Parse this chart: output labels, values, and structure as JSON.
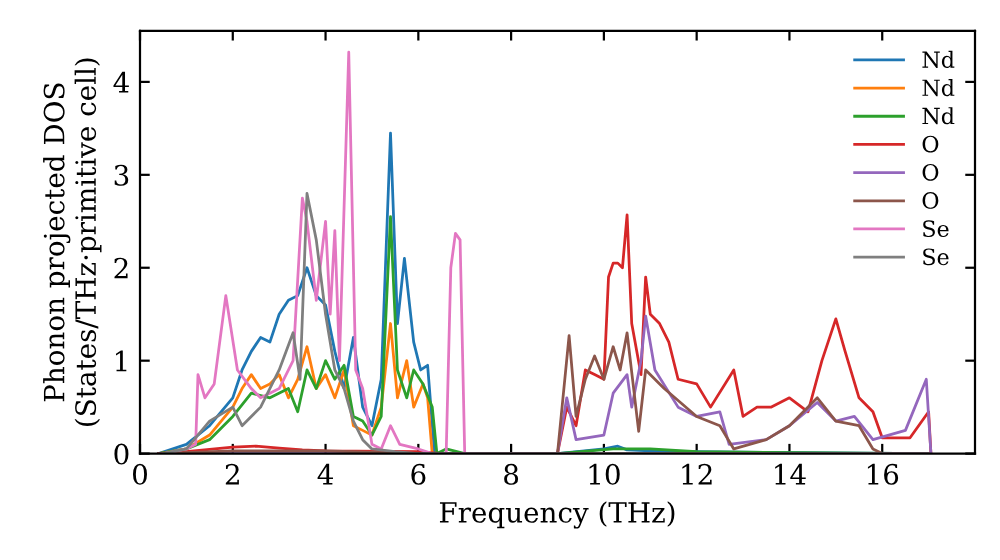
{
  "chart_data": {
    "type": "line",
    "xlabel": "Frequency (THz)",
    "ylabel": "Phonon projected DOS\n(States/THz·primitive cell)",
    "xlim": [
      0,
      18
    ],
    "ylim": [
      0,
      4.55
    ],
    "xticks": [
      0,
      2,
      4,
      6,
      8,
      10,
      12,
      14,
      16
    ],
    "yticks": [
      0,
      1,
      2,
      3,
      4
    ],
    "grid": false,
    "legend": "top right",
    "marker": "none",
    "line_style": "solid",
    "series": [
      {
        "name": "Nd",
        "color": "#1f77b4",
        "x": [
          0.4,
          1.0,
          1.5,
          2.0,
          2.2,
          2.4,
          2.6,
          2.8,
          3.0,
          3.2,
          3.4,
          3.6,
          3.8,
          4.0,
          4.2,
          4.4,
          4.6,
          4.8,
          5.0,
          5.2,
          5.4,
          5.55,
          5.7,
          5.9,
          6.05,
          6.2,
          6.35,
          6.5,
          9.0,
          10.0,
          10.3,
          10.5,
          11.0,
          12.0,
          17.0
        ],
        "values": [
          0,
          0.1,
          0.3,
          0.6,
          0.9,
          1.1,
          1.25,
          1.2,
          1.5,
          1.65,
          1.7,
          2.0,
          1.7,
          1.6,
          1.1,
          0.7,
          1.25,
          0.5,
          0.3,
          0.8,
          3.45,
          1.4,
          2.1,
          1.2,
          0.9,
          0.95,
          0,
          0,
          0,
          0.05,
          0.08,
          0.04,
          0.03,
          0.02,
          0
        ]
      },
      {
        "name": "Nd",
        "color": "#ff7f0e",
        "x": [
          0.4,
          1.0,
          1.5,
          2.0,
          2.2,
          2.4,
          2.6,
          2.8,
          3.0,
          3.2,
          3.4,
          3.6,
          3.8,
          4.0,
          4.2,
          4.4,
          4.6,
          4.8,
          5.0,
          5.2,
          5.4,
          5.55,
          5.75,
          5.9,
          6.1,
          6.2,
          6.3,
          17.0
        ],
        "values": [
          0,
          0.05,
          0.2,
          0.5,
          0.7,
          0.85,
          0.7,
          0.75,
          0.85,
          0.6,
          0.8,
          1.15,
          0.7,
          0.85,
          0.6,
          0.9,
          0.3,
          0.25,
          0.2,
          0.5,
          1.4,
          0.6,
          1.0,
          0.5,
          0.75,
          0.6,
          0,
          0
        ]
      },
      {
        "name": "Nd",
        "color": "#2ca02c",
        "x": [
          0.4,
          1.0,
          1.5,
          2.0,
          2.4,
          2.8,
          3.2,
          3.4,
          3.6,
          3.8,
          4.0,
          4.2,
          4.4,
          4.6,
          4.8,
          5.0,
          5.2,
          5.4,
          5.55,
          5.75,
          5.9,
          6.1,
          6.3,
          6.4,
          6.6,
          7.0,
          9.0,
          10.2,
          11.0,
          12.0,
          17.0
        ],
        "values": [
          0,
          0.05,
          0.15,
          0.4,
          0.65,
          0.6,
          0.7,
          0.45,
          0.9,
          0.7,
          1.0,
          0.8,
          0.95,
          0.4,
          0.35,
          0.2,
          0.4,
          2.55,
          0.9,
          0.6,
          0.9,
          0.75,
          0.5,
          0,
          0.05,
          0,
          0,
          0.05,
          0.05,
          0.02,
          0
        ]
      },
      {
        "name": "O",
        "color": "#d62728",
        "x": [
          0.4,
          1.0,
          2.0,
          2.5,
          3.0,
          3.5,
          4.0,
          6.0,
          6.5,
          9.0,
          9.2,
          9.4,
          9.6,
          9.8,
          10.0,
          10.1,
          10.2,
          10.3,
          10.4,
          10.5,
          10.6,
          10.8,
          10.9,
          11.0,
          11.2,
          11.4,
          11.6,
          12.0,
          12.3,
          12.8,
          13.0,
          13.3,
          13.6,
          14.0,
          14.4,
          14.7,
          15.0,
          15.2,
          15.5,
          15.8,
          16.0,
          16.6,
          17.0,
          17.05
        ],
        "values": [
          0,
          0.02,
          0.07,
          0.08,
          0.06,
          0.04,
          0.03,
          0.02,
          0,
          0,
          0.5,
          0.3,
          0.9,
          0.85,
          0.8,
          1.9,
          2.05,
          2.05,
          2.0,
          2.57,
          1.4,
          0.85,
          1.9,
          1.5,
          1.4,
          1.2,
          0.8,
          0.75,
          0.5,
          0.9,
          0.4,
          0.5,
          0.5,
          0.6,
          0.45,
          1.0,
          1.45,
          1.1,
          0.6,
          0.45,
          0.17,
          0.17,
          0.45,
          0
        ]
      },
      {
        "name": "O",
        "color": "#9467bd",
        "x": [
          0.4,
          9.0,
          9.2,
          9.4,
          10.0,
          10.2,
          10.5,
          10.6,
          10.8,
          10.9,
          11.1,
          11.6,
          12.0,
          12.5,
          12.7,
          13.5,
          14.0,
          14.6,
          15.0,
          15.4,
          15.8,
          16.5,
          16.95,
          17.05
        ],
        "values": [
          0,
          0,
          0.6,
          0.15,
          0.2,
          0.65,
          0.85,
          0.5,
          1.0,
          1.48,
          0.9,
          0.5,
          0.4,
          0.45,
          0.1,
          0.15,
          0.3,
          0.55,
          0.35,
          0.4,
          0.15,
          0.25,
          0.8,
          0
        ]
      },
      {
        "name": "O",
        "color": "#8c564b",
        "x": [
          0.4,
          2.0,
          4.0,
          6.0,
          9.0,
          9.25,
          9.4,
          9.6,
          9.8,
          10.0,
          10.2,
          10.35,
          10.5,
          10.75,
          10.9,
          11.3,
          12.0,
          12.5,
          12.8,
          13.5,
          14.0,
          14.6,
          15.0,
          15.5,
          15.8,
          16.0,
          17.0
        ],
        "values": [
          0,
          0.03,
          0.03,
          0,
          0,
          1.27,
          0.4,
          0.8,
          1.05,
          0.8,
          1.15,
          0.9,
          1.3,
          0.24,
          0.9,
          0.7,
          0.4,
          0.3,
          0.05,
          0.15,
          0.3,
          0.6,
          0.35,
          0.3,
          0.05,
          0,
          0
        ]
      },
      {
        "name": "Se",
        "color": "#e377c2",
        "x": [
          0.5,
          1.0,
          1.2,
          1.25,
          1.4,
          1.6,
          1.85,
          2.1,
          2.4,
          2.6,
          2.8,
          3.0,
          3.3,
          3.5,
          3.6,
          3.8,
          4.0,
          4.1,
          4.2,
          4.3,
          4.5,
          4.65,
          4.8,
          5.0,
          5.2,
          5.4,
          5.6,
          6.0,
          6.3,
          6.6,
          6.7,
          6.8,
          6.9,
          7.0,
          17.0
        ],
        "values": [
          0,
          0.05,
          0.1,
          0.85,
          0.6,
          0.75,
          1.7,
          0.9,
          0.7,
          0.6,
          0.65,
          0.7,
          1.0,
          2.75,
          2.5,
          1.65,
          2.5,
          1.5,
          2.4,
          1.0,
          4.32,
          0.9,
          0.7,
          0.1,
          0.05,
          0.3,
          0.1,
          0.05,
          0,
          0,
          2.0,
          2.37,
          2.3,
          0,
          0
        ]
      },
      {
        "name": "Se",
        "color": "#7f7f7f",
        "x": [
          0.5,
          1.0,
          1.5,
          2.0,
          2.2,
          2.6,
          3.0,
          3.3,
          3.45,
          3.6,
          3.8,
          4.0,
          4.2,
          4.4,
          4.6,
          4.8,
          5.0,
          5.5,
          6.0,
          17.0
        ],
        "values": [
          0,
          0.05,
          0.35,
          0.5,
          0.3,
          0.5,
          0.9,
          1.3,
          0.8,
          2.8,
          2.3,
          1.5,
          0.9,
          0.7,
          0.35,
          0.15,
          0.05,
          0.02,
          0,
          0
        ]
      }
    ]
  }
}
